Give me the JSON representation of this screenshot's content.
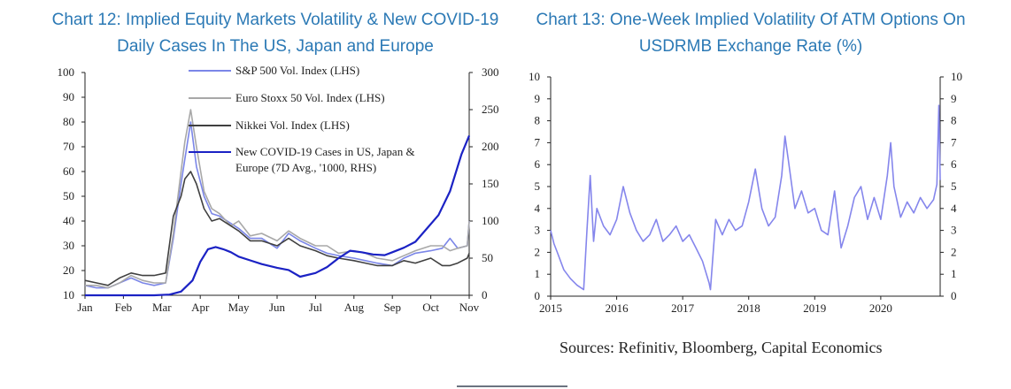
{
  "chart_data": [
    {
      "type": "line",
      "title": "Chart 12: Implied Equity Markets Volatility & New COVID-19 Daily Cases In The US, Japan and Europe",
      "x_categories": [
        "Jan",
        "Feb",
        "Mar",
        "Apr",
        "May",
        "Jun",
        "Jul",
        "Aug",
        "Sep",
        "Oct",
        "Nov"
      ],
      "x_range": [
        0,
        10
      ],
      "ylim_left": [
        10,
        100
      ],
      "yticks_left": [
        "10",
        "20",
        "30",
        "40",
        "50",
        "60",
        "70",
        "80",
        "90",
        "100"
      ],
      "ylim_right": [
        0,
        300
      ],
      "yticks_right": [
        "0",
        "50",
        "100",
        "150",
        "200",
        "250",
        "300"
      ],
      "grid": false,
      "legend_position": "top",
      "series": [
        {
          "name": "S&P 500 Vol. Index (LHS)",
          "axis": "left",
          "color": "#7b86e8",
          "x": [
            0,
            0.3,
            0.6,
            0.9,
            1.2,
            1.5,
            1.8,
            2.1,
            2.3,
            2.5,
            2.6,
            2.75,
            2.9,
            3.1,
            3.3,
            3.5,
            3.8,
            4.0,
            4.3,
            4.6,
            5.0,
            5.3,
            5.6,
            6.0,
            6.3,
            6.6,
            7.0,
            7.3,
            7.6,
            8.0,
            8.3,
            8.6,
            9.0,
            9.3,
            9.5,
            9.7,
            9.95,
            10.0
          ],
          "y": [
            14,
            13,
            13,
            15,
            17,
            15,
            14,
            15,
            33,
            55,
            65,
            80,
            62,
            50,
            43,
            42,
            39,
            37,
            33,
            33,
            29,
            35,
            32,
            29,
            27,
            26,
            25,
            24,
            23,
            22,
            25,
            27,
            28,
            29,
            33,
            29,
            30,
            40
          ]
        },
        {
          "name": "Euro Stoxx 50 Vol. Index (LHS)",
          "axis": "left",
          "color": "#a8a8a8",
          "x": [
            0,
            0.3,
            0.6,
            0.9,
            1.2,
            1.5,
            1.8,
            2.1,
            2.3,
            2.5,
            2.6,
            2.75,
            2.9,
            3.1,
            3.3,
            3.5,
            3.8,
            4.0,
            4.3,
            4.6,
            5.0,
            5.3,
            5.6,
            6.0,
            6.3,
            6.6,
            7.0,
            7.3,
            7.6,
            8.0,
            8.3,
            8.6,
            9.0,
            9.3,
            9.5,
            9.7,
            9.95,
            10.0
          ],
          "y": [
            14,
            14,
            13,
            15,
            18,
            16,
            15,
            15,
            35,
            60,
            72,
            85,
            70,
            52,
            45,
            43,
            38,
            40,
            34,
            35,
            32,
            36,
            33,
            30,
            30,
            27,
            28,
            27,
            25,
            24,
            26,
            28,
            30,
            30,
            28,
            29,
            30,
            40
          ]
        },
        {
          "name": "Nikkei Vol. Index (LHS)",
          "axis": "left",
          "color": "#404040",
          "x": [
            0,
            0.3,
            0.6,
            0.9,
            1.2,
            1.5,
            1.8,
            2.1,
            2.3,
            2.5,
            2.6,
            2.75,
            2.9,
            3.1,
            3.3,
            3.5,
            3.8,
            4.0,
            4.3,
            4.6,
            5.0,
            5.3,
            5.6,
            6.0,
            6.3,
            6.6,
            7.0,
            7.3,
            7.6,
            8.0,
            8.3,
            8.6,
            9.0,
            9.3,
            9.5,
            9.7,
            9.95,
            10.0
          ],
          "y": [
            16,
            15,
            14,
            17,
            19,
            18,
            18,
            19,
            42,
            50,
            57,
            60,
            55,
            45,
            40,
            41,
            38,
            36,
            32,
            32,
            30,
            33,
            30,
            28,
            26,
            25,
            24,
            23,
            22,
            22,
            24,
            23,
            25,
            22,
            22,
            23,
            25,
            27
          ]
        },
        {
          "name": "New COVID-19 Cases in US, Japan & Europe (7D Avg., '1000, RHS)",
          "axis": "right",
          "color": "#1b22c4",
          "x": [
            0,
            1.0,
            1.8,
            2.2,
            2.5,
            2.8,
            3.0,
            3.2,
            3.4,
            3.6,
            3.8,
            4.0,
            4.3,
            4.6,
            5.0,
            5.3,
            5.6,
            6.0,
            6.3,
            6.6,
            6.9,
            7.2,
            7.5,
            7.8,
            8.0,
            8.3,
            8.6,
            8.9,
            9.2,
            9.5,
            9.8,
            10.0
          ],
          "y": [
            0,
            0,
            0,
            1,
            5,
            20,
            45,
            62,
            65,
            62,
            58,
            52,
            47,
            42,
            37,
            34,
            25,
            30,
            38,
            50,
            60,
            58,
            55,
            54,
            58,
            64,
            72,
            90,
            108,
            140,
            190,
            215
          ]
        }
      ]
    },
    {
      "type": "line",
      "title": "Chart 13: One-Week Implied Volatility Of ATM Options On USDRMB Exchange Rate (%)",
      "x_categories": [
        "2015",
        "2016",
        "2017",
        "2018",
        "2019",
        "2020"
      ],
      "x_range": [
        2015,
        2020.9
      ],
      "ylim_left": [
        0,
        10
      ],
      "yticks_left": [
        "0",
        "1",
        "2",
        "3",
        "4",
        "5",
        "6",
        "7",
        "8",
        "9",
        "10"
      ],
      "ylim_right": [
        0,
        10
      ],
      "yticks_right": [
        "0",
        "1",
        "2",
        "3",
        "4",
        "5",
        "6",
        "7",
        "8",
        "9",
        "10"
      ],
      "grid": false,
      "series": [
        {
          "name": "",
          "axis": "left",
          "color": "#8586ec",
          "x": [
            2015.0,
            2015.05,
            2015.1,
            2015.2,
            2015.3,
            2015.4,
            2015.5,
            2015.55,
            2015.6,
            2015.65,
            2015.7,
            2015.8,
            2015.9,
            2016.0,
            2016.1,
            2016.2,
            2016.3,
            2016.4,
            2016.5,
            2016.6,
            2016.7,
            2016.8,
            2016.9,
            2017.0,
            2017.1,
            2017.2,
            2017.3,
            2017.4,
            2017.42,
            2017.45,
            2017.5,
            2017.6,
            2017.7,
            2017.8,
            2017.9,
            2018.0,
            2018.1,
            2018.2,
            2018.3,
            2018.4,
            2018.5,
            2018.55,
            2018.6,
            2018.7,
            2018.8,
            2018.9,
            2019.0,
            2019.1,
            2019.2,
            2019.3,
            2019.4,
            2019.5,
            2019.6,
            2019.7,
            2019.8,
            2019.9,
            2020.0,
            2020.1,
            2020.15,
            2020.2,
            2020.3,
            2020.4,
            2020.5,
            2020.6,
            2020.7,
            2020.75,
            2020.8,
            2020.85,
            2020.88,
            2020.9
          ],
          "y": [
            3.0,
            2.4,
            2.0,
            1.2,
            0.8,
            0.5,
            0.3,
            3.0,
            5.5,
            2.5,
            4.0,
            3.2,
            2.8,
            3.5,
            5.0,
            3.8,
            3.0,
            2.5,
            2.8,
            3.5,
            2.5,
            2.8,
            3.2,
            2.5,
            2.8,
            2.2,
            1.6,
            0.6,
            0.3,
            1.5,
            3.5,
            2.8,
            3.5,
            3.0,
            3.2,
            4.3,
            5.8,
            4.0,
            3.2,
            3.6,
            5.5,
            7.3,
            6.2,
            4.0,
            4.8,
            3.8,
            4.0,
            3.0,
            2.8,
            4.8,
            2.2,
            3.2,
            4.5,
            5.0,
            3.5,
            4.5,
            3.5,
            5.5,
            7.0,
            5.0,
            3.6,
            4.3,
            3.8,
            4.5,
            4.0,
            4.2,
            4.4,
            5.1,
            8.7,
            5.3
          ]
        }
      ]
    }
  ],
  "labels": {
    "title12": "Chart 12: Implied Equity Markets Volatility & New COVID-19 Daily Cases In The US, Japan and Europe",
    "title13": "Chart 13: One-Week Implied Volatility Of ATM Options On USDRMB Exchange Rate (%)",
    "legend": [
      "S&P 500 Vol. Index (LHS)",
      "Euro Stoxx 50 Vol. Index (LHS)",
      "Nikkei Vol. Index (LHS)",
      "New COVID-19 Cases in US, Japan &",
      "Europe (7D Avg., '1000,  RHS)"
    ],
    "source": "Sources: Refinitiv, Bloomberg, Capital Economics"
  },
  "colors": {
    "title": "#2b79b5",
    "axis": "#222222"
  }
}
